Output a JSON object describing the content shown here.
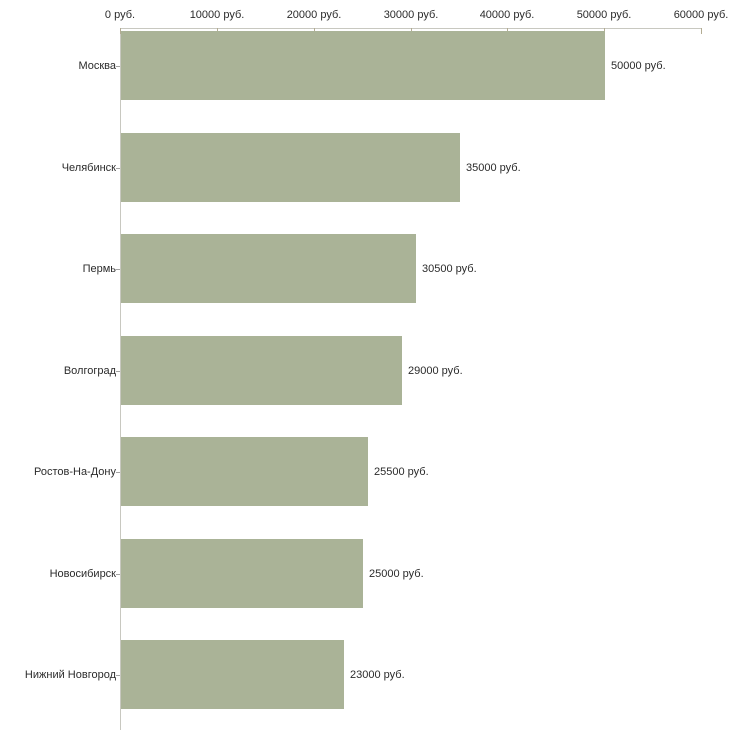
{
  "chart_data": {
    "type": "bar",
    "orientation": "horizontal",
    "title": "",
    "xlabel": "",
    "ylabel": "",
    "unit": "руб.",
    "categories": [
      "Москва",
      "Челябинск",
      "Пермь",
      "Волгоград",
      "Ростов-На-Дону",
      "Новосибирск",
      "Нижний Новгород"
    ],
    "values": [
      50000,
      35000,
      30500,
      29000,
      25500,
      25000,
      23000
    ],
    "value_labels": [
      "50000 руб.",
      "35000 руб.",
      "30500 руб.",
      "29000 руб.",
      "25500 руб.",
      "25000 руб.",
      "23000 руб."
    ],
    "x_axis": {
      "position": "top",
      "min": 0,
      "max": 60000,
      "tick_step": 10000,
      "tick_values": [
        0,
        10000,
        20000,
        30000,
        40000,
        50000,
        60000
      ],
      "tick_labels": [
        "0 руб.",
        "10000 руб.",
        "20000 руб.",
        "30000 руб.",
        "40000 руб.",
        "50000 руб.",
        "60000 руб."
      ]
    },
    "grid": false,
    "legend": false,
    "colors": {
      "bar": "#aab397",
      "axis_line": "#c8c8c0",
      "axis_tick": "#b3ac93",
      "category_tick": "#a3a3a3",
      "text": "#2b2b2b",
      "background": "#ffffff"
    }
  }
}
